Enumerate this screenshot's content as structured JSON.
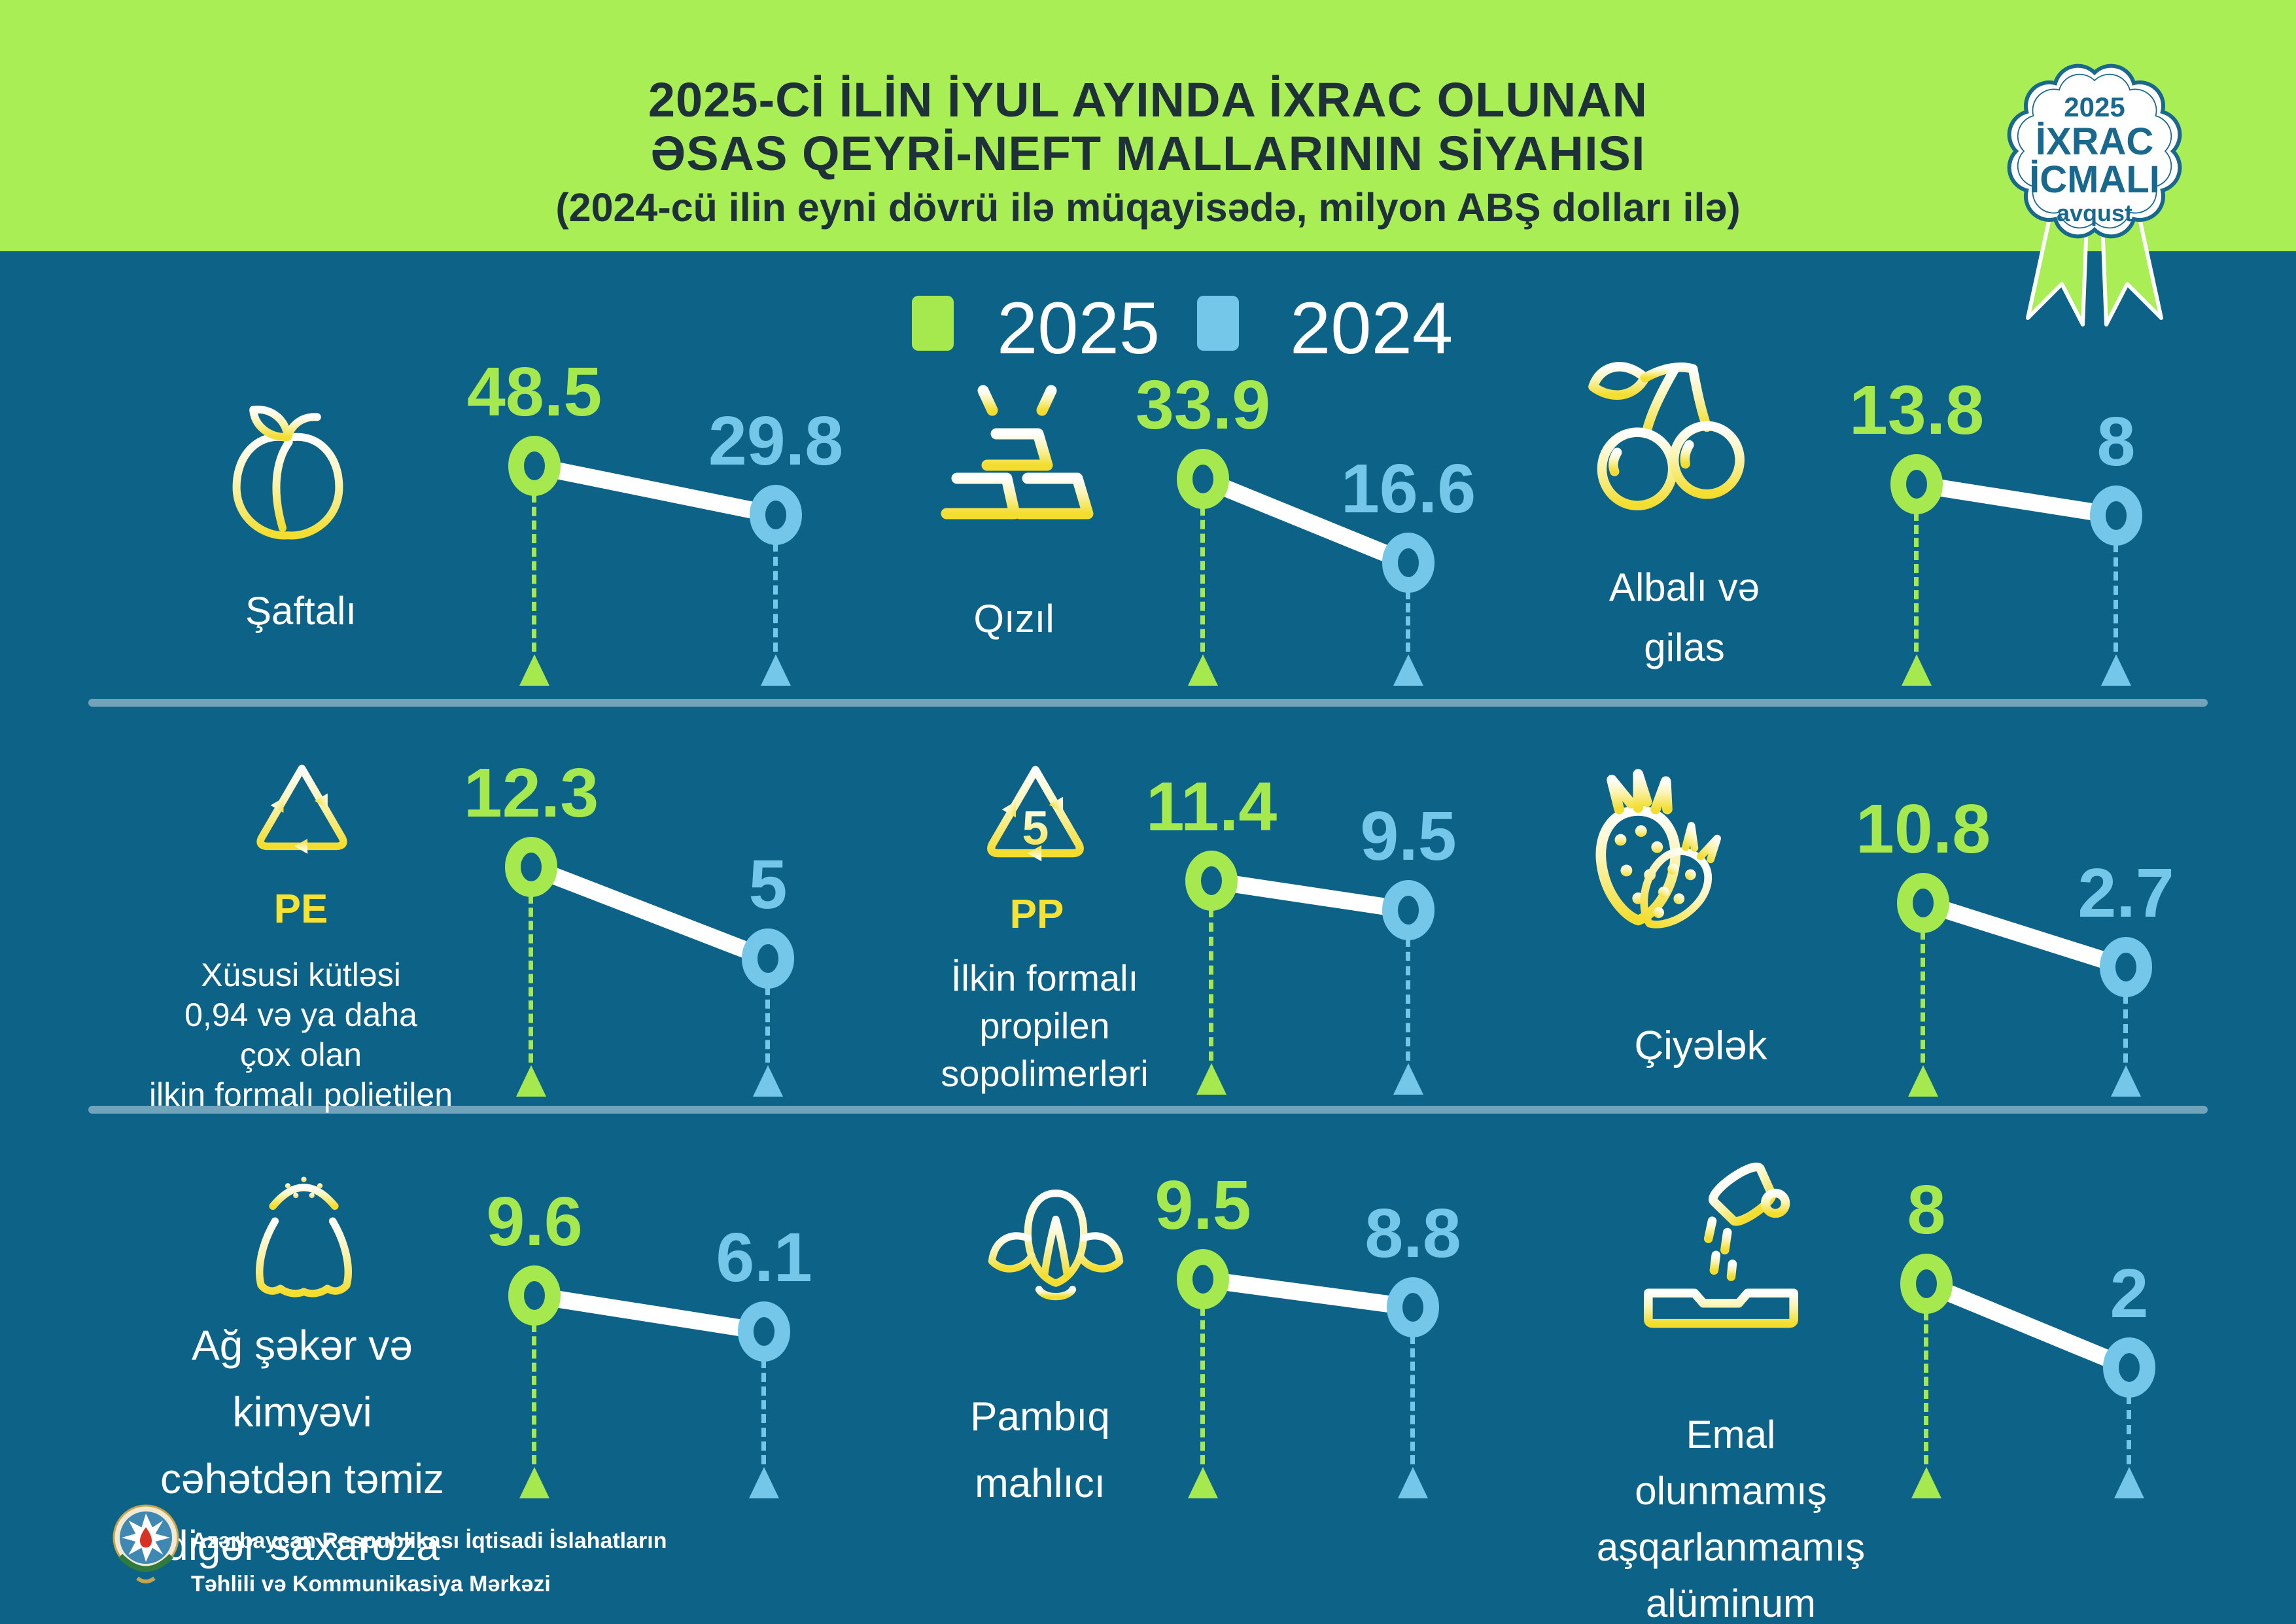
{
  "page": {
    "title_line1": "2025-Cİ İLİN İYUL AYINDA İXRAC OLUNAN",
    "title_line2": "ƏSAS QEYRİ-NEFT MALLARININ SİYAHISI",
    "subtitle": "(2024-cü ilin eyni dövrü ilə müqayisədə, milyon ABŞ dolları ilə)"
  },
  "badge": {
    "year": "2025",
    "line1": "İXRAC",
    "line2": "İCMALI",
    "month": "avqust"
  },
  "legend": [
    {
      "label": "2025",
      "color": "#a6e94e"
    },
    {
      "label": "2024",
      "color": "#74c7e8"
    }
  ],
  "products": [
    {
      "labels": [
        "Şaftalı"
      ],
      "icon": "peach-icon",
      "v2025": "48.5",
      "v2024": "29.8"
    },
    {
      "labels": [
        "Qızıl"
      ],
      "icon": "gold-bars-icon",
      "v2025": "33.9",
      "v2024": "16.6"
    },
    {
      "labels": [
        "Albalı və",
        "gilas"
      ],
      "icon": "cherries-icon",
      "v2025": "13.8",
      "v2024": "8"
    },
    {
      "labels": [
        "Xüsusi kütləsi",
        "0,94 və ya daha",
        "çox olan",
        "ilkin formalı polietilen"
      ],
      "icon": "recycle-pe-icon",
      "icon_label": "PE",
      "v2025": "12.3",
      "v2024": "5"
    },
    {
      "labels": [
        "İlkin formalı",
        "propilen",
        "sopolimerləri"
      ],
      "icon": "recycle-pp-icon",
      "icon_label": "PP",
      "icon_number": "5",
      "v2025": "11.4",
      "v2024": "9.5"
    },
    {
      "labels": [
        "Çiyələk"
      ],
      "icon": "strawberry-icon",
      "v2025": "10.8",
      "v2024": "2.7"
    },
    {
      "labels": [
        "Ağ şəkər və",
        "kimyəvi",
        "cəhətdən təmiz",
        "digər saxaroza"
      ],
      "icon": "sugar-sack-icon",
      "v2025": "9.6",
      "v2024": "6.1"
    },
    {
      "labels": [
        "Pambıq",
        "mahlıcı"
      ],
      "icon": "cotton-icon",
      "v2025": "9.5",
      "v2024": "8.8"
    },
    {
      "labels": [
        "Emal",
        "olunmamış",
        "aşqarlanmamış",
        "alüminum"
      ],
      "icon": "aluminum-pour-icon",
      "v2025": "8",
      "v2024": "2"
    }
  ],
  "footer": {
    "org_line1": "Azərbaycan Respublikası İqtisadi İslahatların",
    "org_line2": "Təhlili və Kommunikasiya Mərkəzi"
  },
  "colors": {
    "header_bg": "#a9ee55",
    "background": "#0d6387",
    "accent_2025": "#a6e94e",
    "accent_2024": "#74c7e8",
    "icon_yellow": "#f6e233",
    "badge_text": "#19698e",
    "divider": "#73a3ba",
    "title_text": "#1e3038",
    "connector": "#ffffff"
  },
  "chart_data": {
    "type": "slope",
    "title": "2025-Cİ İLİN İYUL AYINDA İXRAC OLUNAN ƏSAS QEYRİ-NEFT MALLARININ SİYAHISI",
    "subtitle": "(2024-cü ilin eyni dövrü ilə müqayisədə, milyon ABŞ dolları ilə)",
    "unit": "milyon ABŞ dolları",
    "series_labels": [
      "2025",
      "2024"
    ],
    "legend_position": "top-center",
    "items": [
      {
        "name": "Şaftalı",
        "value_2025": 48.5,
        "value_2024": 29.8
      },
      {
        "name": "Qızıl",
        "value_2025": 33.9,
        "value_2024": 16.6
      },
      {
        "name": "Albalı və gilas",
        "value_2025": 13.8,
        "value_2024": 8
      },
      {
        "name": "Xüsusi kütləsi 0,94 və ya daha çox olan ilkin formalı polietilen (PE)",
        "value_2025": 12.3,
        "value_2024": 5
      },
      {
        "name": "İlkin formalı propilen sopolimerləri (PP)",
        "value_2025": 11.4,
        "value_2024": 9.5
      },
      {
        "name": "Çiyələk",
        "value_2025": 10.8,
        "value_2024": 2.7
      },
      {
        "name": "Ağ şəkər və kimyəvi cəhətdən təmiz digər saxaroza",
        "value_2025": 9.6,
        "value_2024": 6.1
      },
      {
        "name": "Pambıq mahlıcı",
        "value_2025": 9.5,
        "value_2024": 8.8
      },
      {
        "name": "Emal olunmamış aşqarlanmamış alüminum",
        "value_2025": 8,
        "value_2024": 2
      }
    ]
  }
}
